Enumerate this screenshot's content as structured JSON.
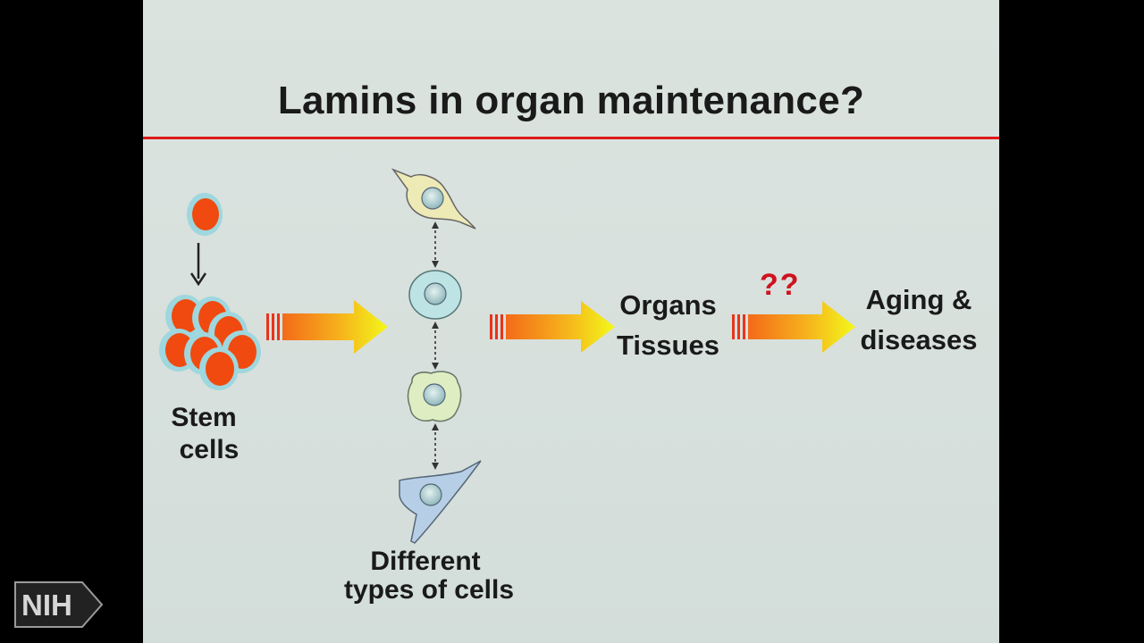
{
  "slide": {
    "title": "Lamins in organ maintenance?",
    "stem_line1": "Stem",
    "stem_line2": "cells",
    "cells_line1": "Different",
    "cells_line2": "types of cells",
    "organs_line1": "Organs",
    "organs_line2": "Tissues",
    "question": "??",
    "aging_line1": "Aging &",
    "aging_line2": "diseases"
  },
  "logo": {
    "text": "NIH"
  },
  "colors": {
    "background": "#d8e1dd",
    "title_rule": "#e01a1a",
    "stem_cell": "#f04a10",
    "stem_cell_halo": "#9ed7de",
    "arrow_start": "#f46a1a",
    "arrow_end": "#f3f81a",
    "question": "#d0121e"
  }
}
